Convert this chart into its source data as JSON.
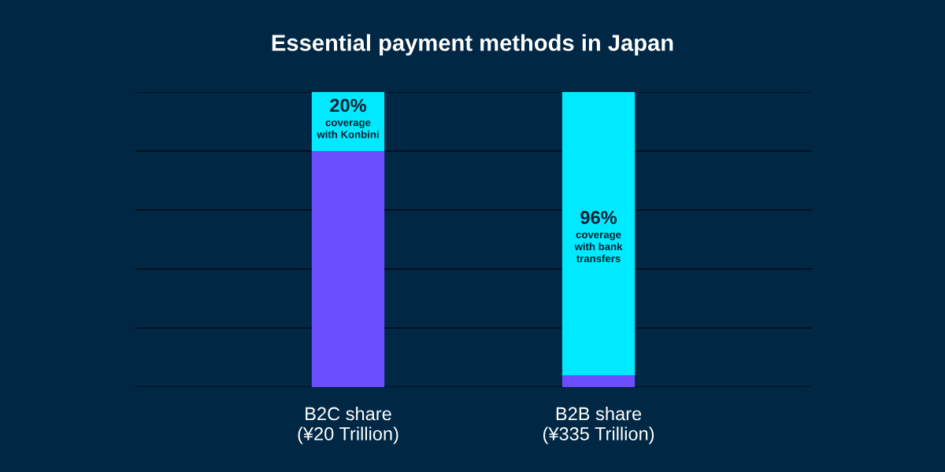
{
  "chart_data": {
    "type": "bar",
    "title": "Essential payment methods in Japan",
    "stacked": true,
    "categories": [
      "B2C share\n(¥20 Trillion)",
      "B2B share\n(¥335 Trillion)"
    ],
    "series": [
      {
        "color": "#6b4eff",
        "values": [
          80,
          4
        ]
      },
      {
        "color": "#00eaff",
        "values": [
          20,
          96
        ],
        "value_labels": [
          "20%",
          "96%"
        ]
      }
    ],
    "ylim": [
      0,
      100
    ],
    "yticks": [
      {
        "value": 0,
        "label": null
      },
      {
        "value": 20,
        "label": null
      },
      {
        "value": 40,
        "label": null
      },
      {
        "value": 60,
        "label": null
      },
      {
        "value": 80,
        "label": null
      },
      {
        "value": 100,
        "label": null
      }
    ],
    "grid": "y",
    "tick_labels": "x",
    "annotations": [
      "coverage\nwith Konbini",
      "coverage\nwith bank\ntransfers"
    ]
  }
}
